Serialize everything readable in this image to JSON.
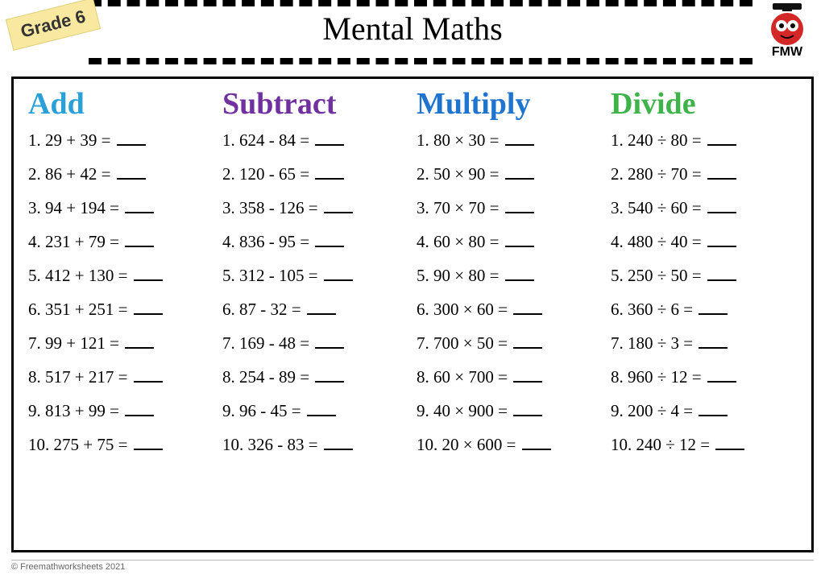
{
  "grade_label": "Grade 6",
  "title": "Mental Maths",
  "logo_text": "FMW",
  "copyright": "© Freemathworksheets 2021",
  "operators": {
    "add": "+",
    "sub": "-",
    "mul": "×",
    "div": "÷"
  },
  "columns": [
    {
      "header": "Add",
      "color": "#2aa0d8",
      "op": "add",
      "problems": [
        {
          "n": 1,
          "a": 29,
          "b": 39
        },
        {
          "n": 2,
          "a": 86,
          "b": 42
        },
        {
          "n": 3,
          "a": 94,
          "b": 194
        },
        {
          "n": 4,
          "a": 231,
          "b": 79
        },
        {
          "n": 5,
          "a": 412,
          "b": 130
        },
        {
          "n": 6,
          "a": 351,
          "b": 251
        },
        {
          "n": 7,
          "a": 99,
          "b": 121
        },
        {
          "n": 8,
          "a": 517,
          "b": 217
        },
        {
          "n": 9,
          "a": 813,
          "b": 99
        },
        {
          "n": 10,
          "a": 275,
          "b": 75
        }
      ]
    },
    {
      "header": "Subtract",
      "color": "#7030a0",
      "op": "sub",
      "problems": [
        {
          "n": 1,
          "a": 624,
          "b": 84
        },
        {
          "n": 2,
          "a": 120,
          "b": 65
        },
        {
          "n": 3,
          "a": 358,
          "b": 126
        },
        {
          "n": 4,
          "a": 836,
          "b": 95
        },
        {
          "n": 5,
          "a": 312,
          "b": 105
        },
        {
          "n": 6,
          "a": 87,
          "b": 32
        },
        {
          "n": 7,
          "a": 169,
          "b": 48
        },
        {
          "n": 8,
          "a": 254,
          "b": 89
        },
        {
          "n": 9,
          "a": 96,
          "b": 45
        },
        {
          "n": 10,
          "a": 326,
          "b": 83
        }
      ]
    },
    {
      "header": "Multiply",
      "color": "#1f74d0",
      "op": "mul",
      "problems": [
        {
          "n": 1,
          "a": 80,
          "b": 30
        },
        {
          "n": 2,
          "a": 50,
          "b": 90
        },
        {
          "n": 3,
          "a": 70,
          "b": 70
        },
        {
          "n": 4,
          "a": 60,
          "b": 80
        },
        {
          "n": 5,
          "a": 90,
          "b": 80
        },
        {
          "n": 6,
          "a": 300,
          "b": 60
        },
        {
          "n": 7,
          "a": 700,
          "b": 50
        },
        {
          "n": 8,
          "a": 60,
          "b": 700
        },
        {
          "n": 9,
          "a": 40,
          "b": 900
        },
        {
          "n": 10,
          "a": 20,
          "b": 600
        }
      ]
    },
    {
      "header": "Divide",
      "color": "#3eb34a",
      "op": "div",
      "problems": [
        {
          "n": 1,
          "a": 240,
          "b": 80
        },
        {
          "n": 2,
          "a": 280,
          "b": 70
        },
        {
          "n": 3,
          "a": 540,
          "b": 60
        },
        {
          "n": 4,
          "a": 480,
          "b": 40
        },
        {
          "n": 5,
          "a": 250,
          "b": 50
        },
        {
          "n": 6,
          "a": 360,
          "b": 6
        },
        {
          "n": 7,
          "a": 180,
          "b": 3
        },
        {
          "n": 8,
          "a": 960,
          "b": 12
        },
        {
          "n": 9,
          "a": 200,
          "b": 4
        },
        {
          "n": 10,
          "a": 240,
          "b": 12
        }
      ]
    }
  ]
}
